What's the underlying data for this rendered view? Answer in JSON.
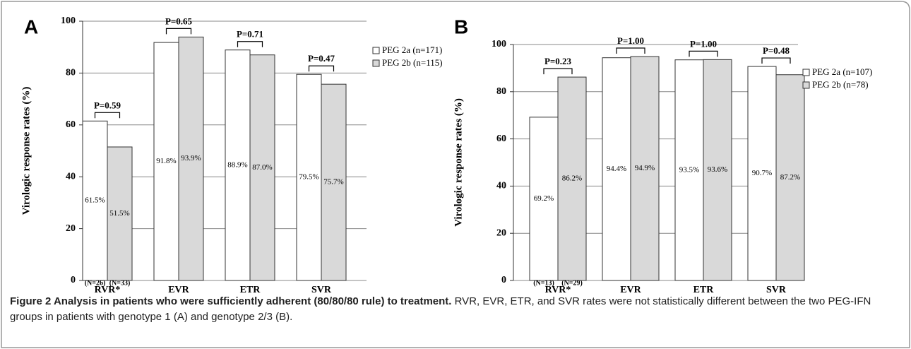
{
  "chart_data": [
    {
      "type": "bar",
      "panel": "A",
      "y_label": "Virologic response rates  (%)",
      "categories": [
        "RVR*",
        "EVR",
        "ETR",
        "SVR"
      ],
      "series": [
        {
          "name": "PEG 2a (n=171)",
          "color": "#ffffff",
          "values": [
            61.5,
            91.8,
            88.9,
            79.5
          ],
          "value_labels": [
            "61.5%",
            "91.8%",
            "88.9%",
            "79.5%"
          ]
        },
        {
          "name": "PEG 2b (n=115)",
          "color": "#d9d9d9",
          "values": [
            51.5,
            93.9,
            87.0,
            75.7
          ],
          "value_labels": [
            "51.5%",
            "93.9%",
            "87.0%",
            "75.7%"
          ]
        }
      ],
      "p_values": [
        "P=0.59",
        "P=0.65",
        "P=0.71",
        "P=0.47"
      ],
      "n_labels": [
        "(N=26)",
        "(N=33)"
      ],
      "ylim": [
        0,
        100
      ],
      "yticks": [
        0,
        20,
        40,
        60,
        80,
        100
      ],
      "grid": true
    },
    {
      "type": "bar",
      "panel": "B",
      "y_label": "Virologic response rates  (%)",
      "categories": [
        "RVR*",
        "EVR",
        "ETR",
        "SVR"
      ],
      "series": [
        {
          "name": "PEG 2a (n=107)",
          "color": "#ffffff",
          "values": [
            69.2,
            94.4,
            93.5,
            90.7
          ],
          "value_labels": [
            "69.2%",
            "94.4%",
            "93.5%",
            "90.7%"
          ]
        },
        {
          "name": "PEG 2b (n=78)",
          "color": "#d9d9d9",
          "values": [
            86.2,
            94.9,
            93.6,
            87.2
          ],
          "value_labels": [
            "86.2%",
            "94.9%",
            "93.6%",
            "87.2%"
          ]
        }
      ],
      "p_values": [
        "P=0.23",
        "P=1.00",
        "P=1.00",
        "P=0.48"
      ],
      "n_labels": [
        "(N=13)",
        "(N=29)"
      ],
      "ylim": [
        0,
        100
      ],
      "yticks": [
        0,
        20,
        40,
        60,
        80,
        100
      ],
      "grid": true
    }
  ],
  "caption": {
    "title": "Figure 2 Analysis in patients who were sufficiently adherent (80/80/80 rule) to treatment.",
    "text": "RVR, EVR, ETR, and SVR rates were not statistically different between the two PEG-IFN groups in patients with genotype 1 (A) and genotype 2/3 (B)."
  }
}
